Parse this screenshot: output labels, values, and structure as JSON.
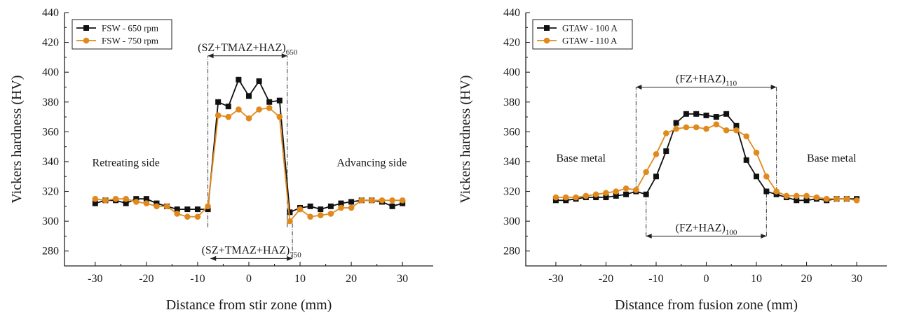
{
  "chart_data": [
    {
      "type": "line",
      "xlabel": "Distance from stir zone (mm)",
      "ylabel": "Vickers hardness (HV)",
      "xlim": [
        -36,
        36
      ],
      "ylim": [
        270,
        440
      ],
      "xticks": [
        -30,
        -20,
        -10,
        0,
        10,
        20,
        30
      ],
      "yticks": [
        280,
        300,
        320,
        340,
        360,
        380,
        400,
        420,
        440
      ],
      "legend": "top-left",
      "series": [
        {
          "name": "FSW - 650 rpm",
          "color": "#111111",
          "marker": "square",
          "x": [
            -30,
            -28,
            -26,
            -24,
            -22,
            -20,
            -18,
            -16,
            -14,
            -12,
            -10,
            -8,
            -6,
            -4,
            -2,
            0,
            2,
            4,
            6,
            8,
            10,
            12,
            14,
            16,
            18,
            20,
            22,
            24,
            26,
            28,
            30
          ],
          "y": [
            312,
            314,
            314,
            312,
            315,
            315,
            312,
            310,
            308,
            308,
            308,
            308,
            380,
            377,
            395,
            384,
            394,
            380,
            381,
            306,
            309,
            310,
            308,
            310,
            312,
            313,
            314,
            314,
            313,
            310,
            312
          ]
        },
        {
          "name": "FSW - 750 rpm",
          "color": "#e08a1e",
          "marker": "circle",
          "x": [
            -30,
            -28,
            -26,
            -24,
            -22,
            -20,
            -18,
            -16,
            -14,
            -12,
            -10,
            -8,
            -6,
            -4,
            -2,
            0,
            2,
            4,
            6,
            8,
            10,
            12,
            14,
            16,
            18,
            20,
            22,
            24,
            26,
            28,
            30
          ],
          "y": [
            315,
            314,
            315,
            315,
            313,
            312,
            310,
            310,
            305,
            303,
            303,
            310,
            371,
            370,
            375,
            369,
            375,
            376,
            370,
            300,
            308,
            303,
            304,
            305,
            309,
            309,
            314,
            314,
            314,
            314,
            314
          ]
        }
      ],
      "annotations": {
        "zone_top": {
          "main": "(SZ+TMAZ+HAZ)",
          "sub": "650",
          "y": 411,
          "x_from": -8,
          "x_to": 7.5
        },
        "zone_bottom": {
          "main": "(SZ+TMAZ+HAZ)",
          "sub": "750",
          "y": 275,
          "x_from": -7.5,
          "x_to": 8.5
        },
        "guide_lines": [
          {
            "x": -8,
            "y_from": 296,
            "y_to": 411
          },
          {
            "x": 7.5,
            "y_from": 296,
            "y_to": 411
          },
          {
            "x": 8.5,
            "y_from": 275,
            "y_to": 300
          }
        ],
        "left_text": {
          "text": "Retreating side",
          "x": -24,
          "y": 337
        },
        "right_text": {
          "text": "Advancing side",
          "x": 24,
          "y": 337
        }
      }
    },
    {
      "type": "line",
      "xlabel": "Distance from fusion zone (mm)",
      "ylabel": "Vickers hardness (HV)",
      "xlim": [
        -36,
        36
      ],
      "ylim": [
        270,
        440
      ],
      "xticks": [
        -30,
        -20,
        -10,
        0,
        10,
        20,
        30
      ],
      "yticks": [
        280,
        300,
        320,
        340,
        360,
        380,
        400,
        420,
        440
      ],
      "legend": "top-left",
      "series": [
        {
          "name": "GTAW - 100 A",
          "color": "#111111",
          "marker": "square",
          "x": [
            -30,
            -28,
            -26,
            -24,
            -22,
            -20,
            -18,
            -16,
            -14,
            -12,
            -10,
            -8,
            -6,
            -4,
            -2,
            0,
            2,
            4,
            6,
            8,
            10,
            12,
            14,
            16,
            18,
            20,
            22,
            24,
            26,
            28,
            30
          ],
          "y": [
            314,
            314,
            315,
            316,
            316,
            316,
            317,
            318,
            320,
            318,
            330,
            347,
            366,
            372,
            372,
            371,
            370,
            372,
            364,
            341,
            330,
            320,
            318,
            316,
            314,
            314,
            315,
            314,
            315,
            315,
            315
          ]
        },
        {
          "name": "GTAW - 110 A",
          "color": "#e08a1e",
          "marker": "circle",
          "x": [
            -30,
            -28,
            -26,
            -24,
            -22,
            -20,
            -18,
            -16,
            -14,
            -12,
            -10,
            -8,
            -6,
            -4,
            -2,
            0,
            2,
            4,
            6,
            8,
            10,
            12,
            14,
            16,
            18,
            20,
            22,
            24,
            26,
            28,
            30
          ],
          "y": [
            316,
            316,
            316,
            317,
            318,
            319,
            320,
            322,
            321,
            333,
            345,
            359,
            362,
            363,
            363,
            362,
            365,
            361,
            361,
            357,
            346,
            330,
            320,
            317,
            317,
            317,
            316,
            315,
            315,
            315,
            314
          ]
        }
      ],
      "annotations": {
        "zone_top": {
          "main": "(FZ+HAZ)",
          "sub": "110",
          "y": 390,
          "x_from": -14,
          "x_to": 14
        },
        "zone_bottom": {
          "main": "(FZ+HAZ)",
          "sub": "100",
          "y": 290,
          "x_from": -12,
          "x_to": 12
        },
        "guide_lines": [
          {
            "x": -14,
            "y_from": 321,
            "y_to": 390
          },
          {
            "x": 14,
            "y_from": 320,
            "y_to": 390
          },
          {
            "x": -12,
            "y_from": 290,
            "y_to": 318
          },
          {
            "x": 12,
            "y_from": 290,
            "y_to": 320
          }
        ],
        "left_text": {
          "text": "Base metal",
          "x": -25,
          "y": 340
        },
        "right_text": {
          "text": "Base metal",
          "x": 25,
          "y": 340
        }
      }
    }
  ]
}
